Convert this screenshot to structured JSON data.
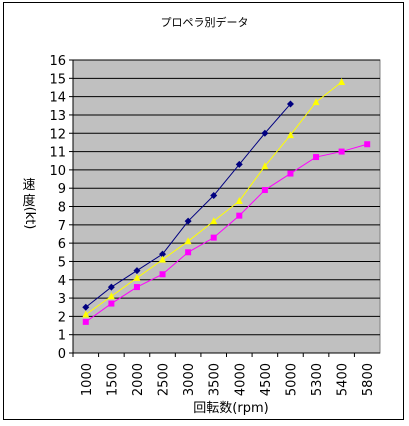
{
  "chart_data": {
    "type": "line",
    "title": "プロペラ別データ",
    "ylabel": "速度(kt)",
    "xlabel": "回転数(rpm)",
    "categories": [
      "1000",
      "1500",
      "2000",
      "2500",
      "3000",
      "3500",
      "4000",
      "4500",
      "5000",
      "5300",
      "5400",
      "5800"
    ],
    "ylim": [
      0,
      16
    ],
    "yticks": [
      "0",
      "1",
      "2",
      "3",
      "4",
      "5",
      "6",
      "7",
      "8",
      "9",
      "10",
      "11",
      "12",
      "13",
      "14",
      "15",
      "16"
    ],
    "grid": true,
    "legend": "none",
    "plot_background": "#c0c0c0",
    "series": [
      {
        "color": "#000080",
        "marker": "diamond",
        "values": [
          2.5,
          3.6,
          4.5,
          5.4,
          7.2,
          8.6,
          10.3,
          12.0,
          13.6,
          null,
          null,
          null
        ]
      },
      {
        "color": "#ffff00",
        "marker": "triangle",
        "values": [
          2.1,
          3.1,
          4.1,
          5.1,
          6.1,
          7.2,
          8.3,
          10.2,
          11.9,
          13.7,
          14.8,
          null
        ]
      },
      {
        "color": "#ff00ff",
        "marker": "square",
        "values": [
          1.7,
          2.7,
          3.6,
          4.3,
          5.5,
          6.3,
          7.5,
          8.9,
          9.8,
          10.7,
          11.0,
          11.4
        ]
      }
    ]
  }
}
